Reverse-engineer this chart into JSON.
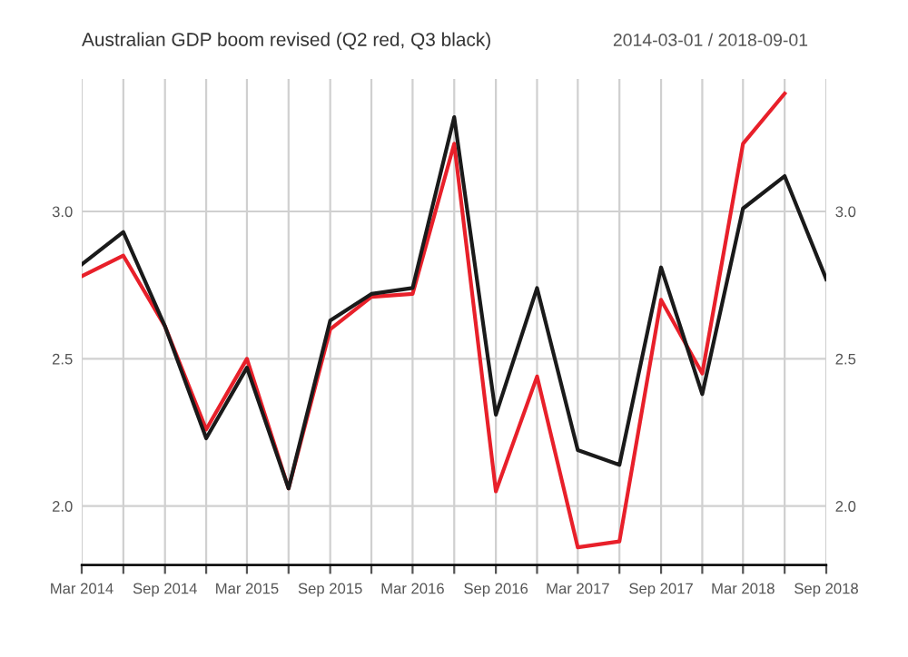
{
  "chart_data": {
    "type": "line",
    "title": "Australian GDP boom revised (Q2 red, Q3 black)",
    "subtitle": "2014-03-01 / 2018-09-01",
    "x": [
      "2014-03",
      "2014-06",
      "2014-09",
      "2014-12",
      "2015-03",
      "2015-06",
      "2015-09",
      "2015-12",
      "2016-03",
      "2016-06",
      "2016-09",
      "2016-12",
      "2017-03",
      "2017-06",
      "2017-09",
      "2017-12",
      "2018-03",
      "2018-06",
      "2018-09"
    ],
    "series": [
      {
        "color": "#e8202a",
        "values": [
          2.78,
          2.85,
          2.61,
          2.26,
          2.5,
          2.06,
          2.6,
          2.71,
          2.72,
          3.23,
          2.05,
          2.44,
          1.86,
          1.88,
          2.7,
          2.45,
          3.23,
          3.4,
          null
        ]
      },
      {
        "color": "#1a1a1a",
        "values": [
          2.82,
          2.93,
          2.61,
          2.23,
          2.47,
          2.06,
          2.63,
          2.72,
          2.74,
          3.32,
          2.31,
          2.74,
          2.19,
          2.14,
          2.81,
          2.38,
          3.01,
          3.12,
          2.77
        ]
      }
    ],
    "xlim": [
      "2014-03",
      "2018-09"
    ],
    "xticks": [
      {
        "value": "2014-03",
        "label": "Mar 2014"
      },
      {
        "value": "2014-06",
        "label": null
      },
      {
        "value": "2014-09",
        "label": "Sep 2014"
      },
      {
        "value": "2014-12",
        "label": null
      },
      {
        "value": "2015-03",
        "label": "Mar 2015"
      },
      {
        "value": "2015-06",
        "label": null
      },
      {
        "value": "2015-09",
        "label": "Sep 2015"
      },
      {
        "value": "2015-12",
        "label": null
      },
      {
        "value": "2016-03",
        "label": "Mar 2016"
      },
      {
        "value": "2016-06",
        "label": null
      },
      {
        "value": "2016-09",
        "label": "Sep 2016"
      },
      {
        "value": "2016-12",
        "label": null
      },
      {
        "value": "2017-03",
        "label": "Mar 2017"
      },
      {
        "value": "2017-06",
        "label": null
      },
      {
        "value": "2017-09",
        "label": "Sep 2017"
      },
      {
        "value": "2017-12",
        "label": null
      },
      {
        "value": "2018-03",
        "label": "Mar 2018"
      },
      {
        "value": "2018-06",
        "label": null
      },
      {
        "value": "2018-09",
        "label": "Sep 2018"
      }
    ],
    "ylim": [
      1.8,
      3.45
    ],
    "yticks": [
      {
        "value": 2.0,
        "label": "2.0"
      },
      {
        "value": 2.5,
        "label": "2.5"
      },
      {
        "value": 3.0,
        "label": "3.0"
      }
    ],
    "y2lim": [
      1.8,
      3.45
    ],
    "y2ticks": [
      {
        "value": 2.0,
        "label": "2.0"
      },
      {
        "value": 2.5,
        "label": "2.5"
      },
      {
        "value": 3.0,
        "label": "3.0"
      }
    ],
    "grid": true,
    "legend": false,
    "marker": "none",
    "line_style": "solid"
  }
}
